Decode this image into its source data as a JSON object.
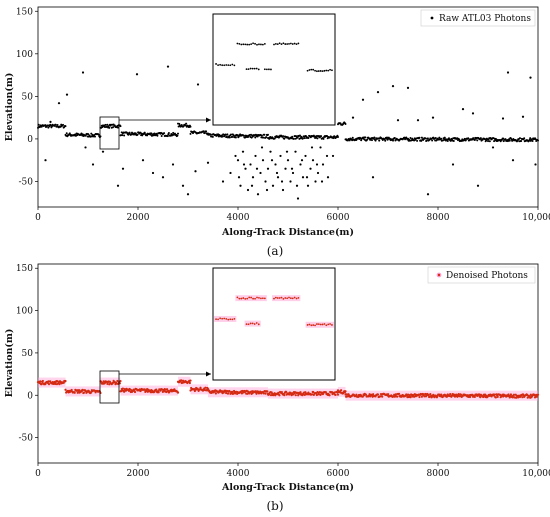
{
  "figure_labels": {
    "a": "(a)",
    "b": "(b)"
  },
  "colors": {
    "raw_points": "#000000",
    "denoised_points": "#d42a12",
    "denoised_halo": "#ff9fd6",
    "inset_frame": "#000000"
  },
  "chart_data": [
    {
      "type": "scatter",
      "panel": "a",
      "title": "",
      "xlabel": "Along-Track Distance(m)",
      "ylabel": "Elevation(m)",
      "xlim": [
        0,
        10000
      ],
      "ylim": [
        -80,
        155
      ],
      "xticks": [
        "0",
        "2000",
        "4000",
        "6000",
        "8000",
        "10,000"
      ],
      "xtick_values": [
        0,
        2000,
        4000,
        6000,
        8000,
        10000
      ],
      "yticks": [
        "-50",
        "0",
        "50",
        "100",
        "150"
      ],
      "ytick_values": [
        -50,
        0,
        50,
        100,
        150
      ],
      "grid": false,
      "legend_position": "top-right",
      "series": [
        {
          "name": "Raw ATL03 Photons",
          "segments": [
            {
              "x": [
                0,
                550
              ],
              "y": [
                15,
                15
              ]
            },
            {
              "x": [
                550,
                1250
              ],
              "y": [
                5,
                4
              ]
            },
            {
              "x": [
                1250,
                1650
              ],
              "y": [
                15,
                15
              ]
            },
            {
              "x": [
                1650,
                2800
              ],
              "y": [
                6,
                5
              ]
            },
            {
              "x": [
                2800,
                3050
              ],
              "y": [
                16,
                16
              ]
            },
            {
              "x": [
                3050,
                3400
              ],
              "y": [
                7,
                7
              ]
            },
            {
              "x": [
                3400,
                4600
              ],
              "y": [
                4,
                3
              ]
            },
            {
              "x": [
                4600,
                6000
              ],
              "y": [
                2,
                2
              ]
            },
            {
              "x": [
                6000,
                6150
              ],
              "y": [
                18,
                18
              ]
            },
            {
              "x": [
                6150,
                10000
              ],
              "y": [
                0,
                -1
              ]
            }
          ],
          "noise_points": [
            [
              150,
              -25
            ],
            [
              250,
              20
            ],
            [
              420,
              42
            ],
            [
              580,
              52
            ],
            [
              900,
              78
            ],
            [
              950,
              -10
            ],
            [
              1100,
              -30
            ],
            [
              1300,
              -15
            ],
            [
              1600,
              -55
            ],
            [
              1700,
              -35
            ],
            [
              1980,
              76
            ],
            [
              2100,
              -25
            ],
            [
              2300,
              -40
            ],
            [
              2500,
              -45
            ],
            [
              2600,
              85
            ],
            [
              2700,
              -30
            ],
            [
              2900,
              -55
            ],
            [
              3000,
              -65
            ],
            [
              3150,
              -38
            ],
            [
              3200,
              64
            ],
            [
              3400,
              -28
            ],
            [
              3600,
              22
            ],
            [
              3700,
              -50
            ],
            [
              3850,
              -40
            ],
            [
              4000,
              -25
            ],
            [
              4050,
              -55
            ],
            [
              4100,
              -15
            ],
            [
              4150,
              -35
            ],
            [
              4200,
              -60
            ],
            [
              4250,
              -30
            ],
            [
              4300,
              -45
            ],
            [
              4350,
              -20
            ],
            [
              4400,
              -65
            ],
            [
              4450,
              -40
            ],
            [
              4500,
              -25
            ],
            [
              4550,
              -50
            ],
            [
              4600,
              -35
            ],
            [
              4650,
              -15
            ],
            [
              4700,
              -55
            ],
            [
              4750,
              -30
            ],
            [
              4800,
              -45
            ],
            [
              4850,
              -20
            ],
            [
              4900,
              -60
            ],
            [
              4950,
              -35
            ],
            [
              5000,
              -25
            ],
            [
              5050,
              -50
            ],
            [
              5100,
              -40
            ],
            [
              5150,
              -15
            ],
            [
              5200,
              -70
            ],
            [
              5250,
              -30
            ],
            [
              5300,
              -45
            ],
            [
              5350,
              -20
            ],
            [
              5400,
              -55
            ],
            [
              5450,
              -35
            ],
            [
              5500,
              -25
            ],
            [
              5550,
              -50
            ],
            [
              5600,
              -40
            ],
            [
              5650,
              -10
            ],
            [
              5700,
              -30
            ],
            [
              5800,
              -45
            ],
            [
              5900,
              -20
            ],
            [
              3950,
              -20
            ],
            [
              4020,
              -45
            ],
            [
              4120,
              -30
            ],
            [
              4280,
              -55
            ],
            [
              4380,
              -35
            ],
            [
              4480,
              -10
            ],
            [
              4580,
              -60
            ],
            [
              4680,
              -25
            ],
            [
              4780,
              -40
            ],
            [
              4880,
              -50
            ],
            [
              4980,
              -15
            ],
            [
              5080,
              -35
            ],
            [
              5180,
              -55
            ],
            [
              5280,
              -25
            ],
            [
              5380,
              -45
            ],
            [
              5480,
              -10
            ],
            [
              5580,
              -30
            ],
            [
              5680,
              -50
            ],
            [
              5780,
              -20
            ],
            [
              6300,
              25
            ],
            [
              6500,
              46
            ],
            [
              6700,
              -45
            ],
            [
              6800,
              55
            ],
            [
              7100,
              62
            ],
            [
              7200,
              22
            ],
            [
              7400,
              60
            ],
            [
              7600,
              22
            ],
            [
              7800,
              -65
            ],
            [
              7900,
              25
            ],
            [
              8300,
              -30
            ],
            [
              8500,
              35
            ],
            [
              8700,
              30
            ],
            [
              8800,
              -55
            ],
            [
              9100,
              -10
            ],
            [
              9300,
              24
            ],
            [
              9400,
              78
            ],
            [
              9500,
              -25
            ],
            [
              9700,
              26
            ],
            [
              9850,
              72
            ],
            [
              9950,
              -30
            ]
          ],
          "inset": {
            "zoom_x": [
              1250,
              1650
            ],
            "zoom_y": [
              -12,
              30
            ],
            "clusters": [
              {
                "x": [
                  1330,
                  1420
                ],
                "y": [
                  88,
                  88
                ]
              },
              {
                "x": [
                  1450,
                  1530
                ],
                "y": [
                  88,
                  88
                ]
              },
              {
                "x": [
                  1260,
                  1320
                ],
                "y": [
                  70,
                  70
                ]
              },
              {
                "x": [
                  1360,
                  1400
                ],
                "y": [
                  66,
                  66
                ]
              },
              {
                "x": [
                  1560,
                  1640
                ],
                "y": [
                  65,
                  65
                ]
              },
              {
                "x": [
                  1420,
                  1440
                ],
                "y": [
                  66,
                  66
                ]
              }
            ]
          }
        }
      ]
    },
    {
      "type": "scatter",
      "panel": "b",
      "title": "",
      "xlabel": "Along-Track Distance(m)",
      "ylabel": "Elevation(m)",
      "xlim": [
        0,
        10000
      ],
      "ylim": [
        -80,
        155
      ],
      "xticks": [
        "0",
        "2000",
        "4000",
        "6000",
        "8000",
        "10,000"
      ],
      "xtick_values": [
        0,
        2000,
        4000,
        6000,
        8000,
        10000
      ],
      "yticks": [
        "-50",
        "0",
        "50",
        "100",
        "150"
      ],
      "ytick_values": [
        -50,
        0,
        50,
        100,
        150
      ],
      "grid": false,
      "legend_position": "top-right",
      "series": [
        {
          "name": "Denoised Photons",
          "segments": [
            {
              "x": [
                0,
                550
              ],
              "y": [
                15,
                15
              ]
            },
            {
              "x": [
                550,
                1250
              ],
              "y": [
                5,
                4
              ]
            },
            {
              "x": [
                1250,
                1650
              ],
              "y": [
                15,
                15
              ]
            },
            {
              "x": [
                1650,
                2800
              ],
              "y": [
                6,
                5
              ]
            },
            {
              "x": [
                2800,
                3050
              ],
              "y": [
                16,
                16
              ]
            },
            {
              "x": [
                3050,
                3400
              ],
              "y": [
                7,
                7
              ]
            },
            {
              "x": [
                3400,
                4600
              ],
              "y": [
                4,
                3
              ]
            },
            {
              "x": [
                4600,
                6000
              ],
              "y": [
                2,
                2
              ]
            },
            {
              "x": [
                6000,
                6150
              ],
              "y": [
                4,
                4
              ]
            },
            {
              "x": [
                6150,
                10000
              ],
              "y": [
                0,
                -1
              ]
            }
          ],
          "inset": {
            "zoom_x": [
              1250,
              1650
            ],
            "zoom_y": [
              -12,
              30
            ],
            "clusters": [
              {
                "x": [
                  1330,
                  1420
                ],
                "y": [
                  88,
                  88
                ]
              },
              {
                "x": [
                  1450,
                  1530
                ],
                "y": [
                  88,
                  88
                ]
              },
              {
                "x": [
                  1260,
                  1320
                ],
                "y": [
                  70,
                  70
                ]
              },
              {
                "x": [
                  1360,
                  1400
                ],
                "y": [
                  66,
                  66
                ]
              },
              {
                "x": [
                  1560,
                  1640
                ],
                "y": [
                  65,
                  65
                ]
              }
            ]
          }
        }
      ]
    }
  ]
}
